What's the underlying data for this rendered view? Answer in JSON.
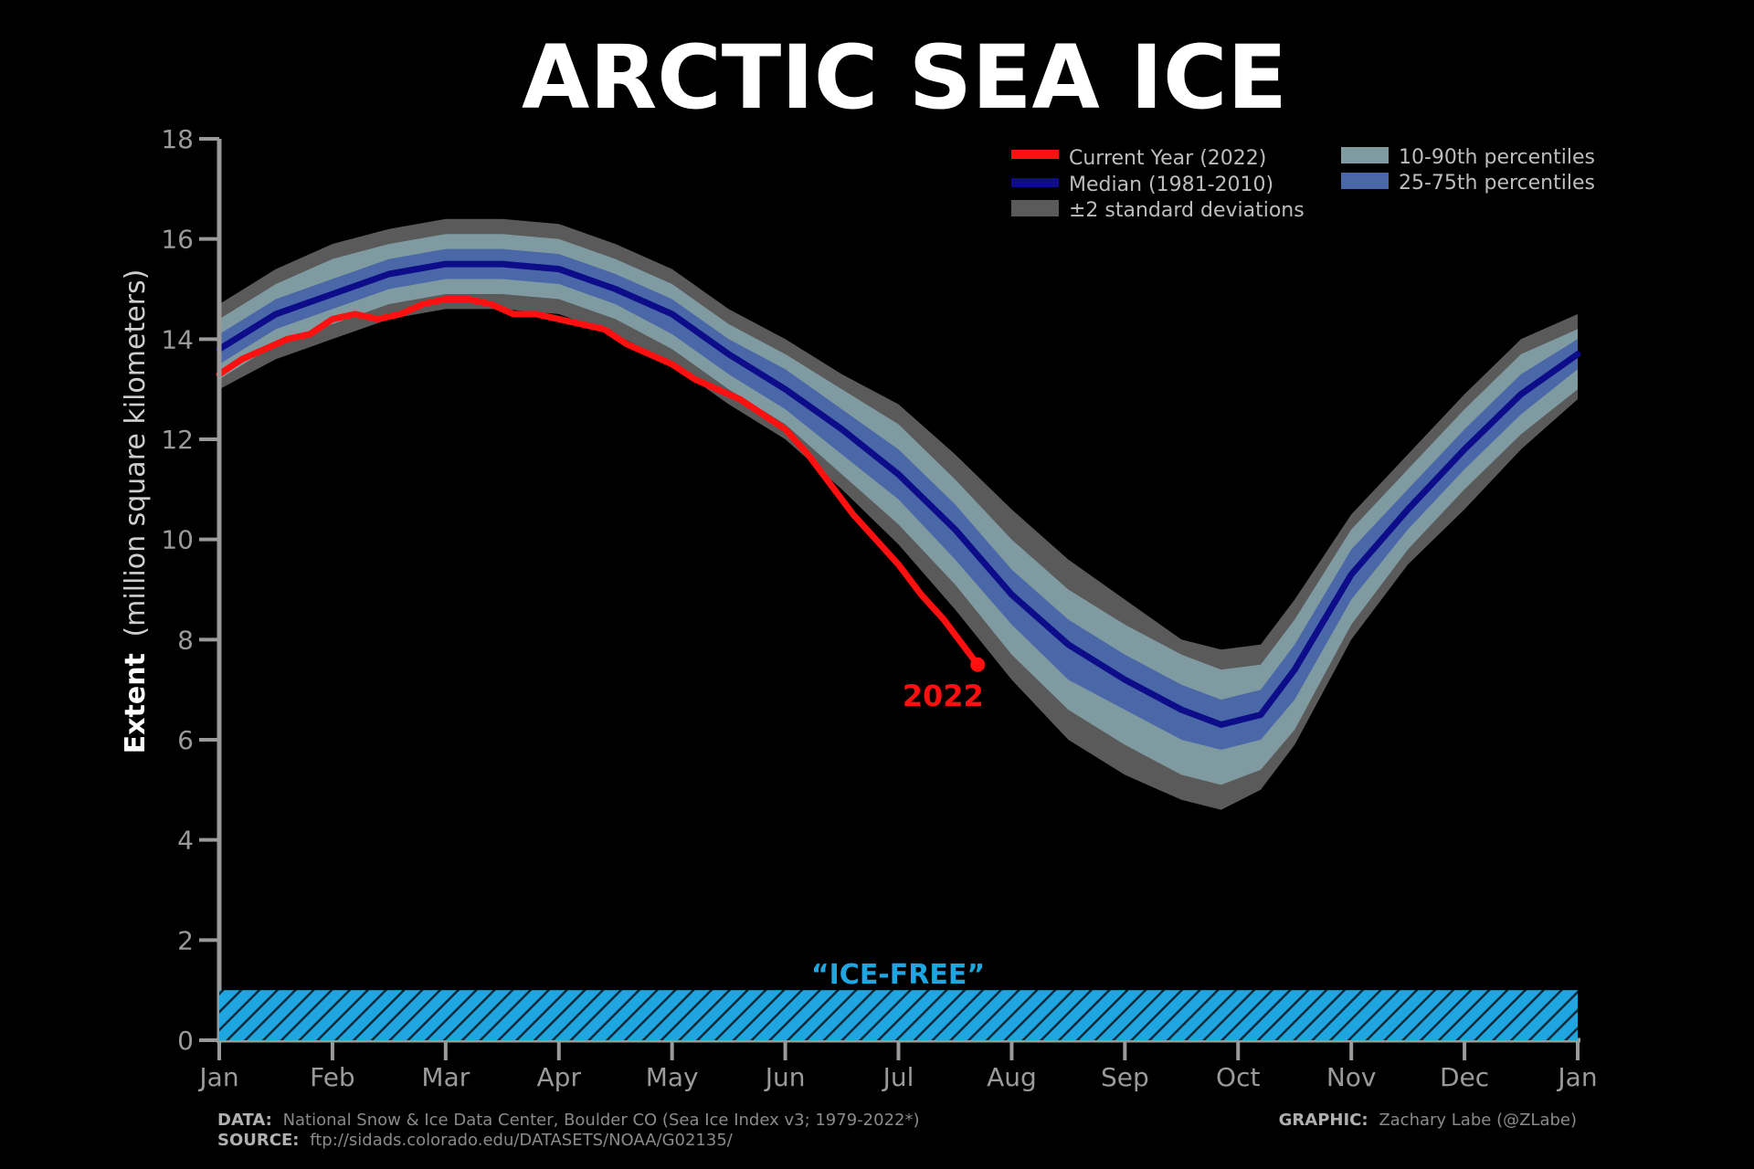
{
  "colors": {
    "background": "#000000",
    "current": "#ff1010",
    "median": "#0d0d8a",
    "std2": "#5a5a5a",
    "p10_90": "#7f9aa0",
    "p25_75": "#4a68a8",
    "axis": "#9a9a9a",
    "icefree": "#1fa6e0"
  },
  "chart_data": {
    "type": "line",
    "title": "ARCTIC SEA ICE",
    "ylabel_bold": "Extent",
    "ylabel_rest": "(million square kilometers)",
    "ylim": [
      0,
      18
    ],
    "yticks": [
      "0",
      "2",
      "4",
      "6",
      "8",
      "10",
      "12",
      "14",
      "16",
      "18"
    ],
    "xlabels": [
      "Jan",
      "Feb",
      "Mar",
      "Apr",
      "May",
      "Jun",
      "Jul",
      "Aug",
      "Sep",
      "Oct",
      "Nov",
      "Dec",
      "Jan"
    ],
    "months": [
      0,
      1,
      2,
      3,
      4,
      5,
      6,
      7,
      8,
      9,
      10,
      11,
      12
    ],
    "median": {
      "name": "Median (1981-2010)",
      "x": [
        0,
        0.5,
        1,
        1.5,
        2,
        2.5,
        3,
        3.5,
        4,
        4.5,
        5,
        5.5,
        6,
        6.5,
        7,
        7.5,
        8,
        8.5,
        8.85,
        9.2,
        9.5,
        10,
        10.5,
        11,
        11.5,
        12
      ],
      "values": [
        13.8,
        14.5,
        14.9,
        15.3,
        15.5,
        15.5,
        15.4,
        15.0,
        14.5,
        13.7,
        13.0,
        12.2,
        11.3,
        10.2,
        8.9,
        7.9,
        7.2,
        6.6,
        6.3,
        6.5,
        7.4,
        9.3,
        10.6,
        11.8,
        12.9,
        13.7
      ]
    },
    "p25_75": {
      "name": "25-75th percentiles",
      "lower": [
        13.5,
        14.2,
        14.6,
        15.0,
        15.2,
        15.2,
        15.1,
        14.7,
        14.1,
        13.3,
        12.6,
        11.7,
        10.8,
        9.6,
        8.3,
        7.2,
        6.6,
        6.0,
        5.8,
        6.0,
        6.8,
        8.8,
        10.2,
        11.4,
        12.5,
        13.4
      ],
      "upper": [
        14.1,
        14.8,
        15.2,
        15.6,
        15.8,
        15.8,
        15.7,
        15.3,
        14.8,
        14.0,
        13.4,
        12.6,
        11.8,
        10.7,
        9.4,
        8.4,
        7.7,
        7.1,
        6.8,
        7.0,
        7.9,
        9.8,
        11.0,
        12.2,
        13.3,
        14.0
      ]
    },
    "p10_90": {
      "name": "10-90th percentiles",
      "lower": [
        13.2,
        13.9,
        14.3,
        14.7,
        14.9,
        14.9,
        14.8,
        14.4,
        13.8,
        13.0,
        12.3,
        11.3,
        10.3,
        9.1,
        7.7,
        6.6,
        5.9,
        5.3,
        5.1,
        5.4,
        6.2,
        8.3,
        9.8,
        11.0,
        12.1,
        13.0
      ],
      "upper": [
        14.4,
        15.1,
        15.6,
        15.9,
        16.1,
        16.1,
        16.0,
        15.6,
        15.1,
        14.3,
        13.7,
        13.0,
        12.3,
        11.2,
        10.0,
        9.0,
        8.3,
        7.7,
        7.4,
        7.5,
        8.4,
        10.2,
        11.4,
        12.6,
        13.7,
        14.2
      ]
    },
    "std2": {
      "name": "±2 standard deviations",
      "lower": [
        13.0,
        13.6,
        14.0,
        14.4,
        14.6,
        14.6,
        14.5,
        14.1,
        13.5,
        12.7,
        12.0,
        11.0,
        9.9,
        8.6,
        7.2,
        6.0,
        5.3,
        4.8,
        4.6,
        5.0,
        5.9,
        8.0,
        9.5,
        10.6,
        11.8,
        12.8
      ],
      "upper": [
        14.7,
        15.4,
        15.9,
        16.2,
        16.4,
        16.4,
        16.3,
        15.9,
        15.4,
        14.6,
        14.0,
        13.3,
        12.7,
        11.7,
        10.6,
        9.6,
        8.8,
        8.0,
        7.8,
        7.9,
        8.8,
        10.5,
        11.7,
        12.9,
        14.0,
        14.5
      ]
    },
    "current": {
      "name": "Current Year (2022)",
      "x": [
        0,
        0.2,
        0.4,
        0.6,
        0.8,
        1.0,
        1.2,
        1.4,
        1.6,
        1.8,
        2.0,
        2.2,
        2.4,
        2.6,
        2.8,
        3.0,
        3.2,
        3.4,
        3.6,
        3.8,
        4.0,
        4.2,
        4.4,
        4.6,
        4.8,
        5.0,
        5.2,
        5.4,
        5.6,
        5.8,
        6.0,
        6.2,
        6.4,
        6.6,
        6.7
      ],
      "values": [
        13.3,
        13.6,
        13.8,
        14.0,
        14.1,
        14.4,
        14.5,
        14.4,
        14.5,
        14.7,
        14.8,
        14.8,
        14.7,
        14.5,
        14.5,
        14.4,
        14.3,
        14.2,
        13.9,
        13.7,
        13.5,
        13.2,
        13.0,
        12.8,
        12.5,
        12.2,
        11.7,
        11.1,
        10.5,
        10.0,
        9.5,
        8.9,
        8.4,
        7.8,
        7.5
      ]
    },
    "end_label": "2022",
    "icefree_label": "“ICE-FREE”",
    "icefree_ylim": [
      0,
      1
    ]
  },
  "legend": {
    "col1": [
      "Current Year (2022)",
      "Median (1981-2010)",
      "±2 standard deviations"
    ],
    "col2": [
      "10-90th percentiles",
      "25-75th percentiles"
    ]
  },
  "footer": {
    "data_label": "DATA:",
    "data_text": "National Snow & Ice Data Center, Boulder CO (Sea Ice Index v3; 1979-2022*)",
    "source_label": "SOURCE:",
    "source_text": "ftp://sidads.colorado.edu/DATASETS/NOAA/G02135/",
    "graphic_label": "GRAPHIC:",
    "graphic_text": "Zachary Labe (@ZLabe)"
  }
}
